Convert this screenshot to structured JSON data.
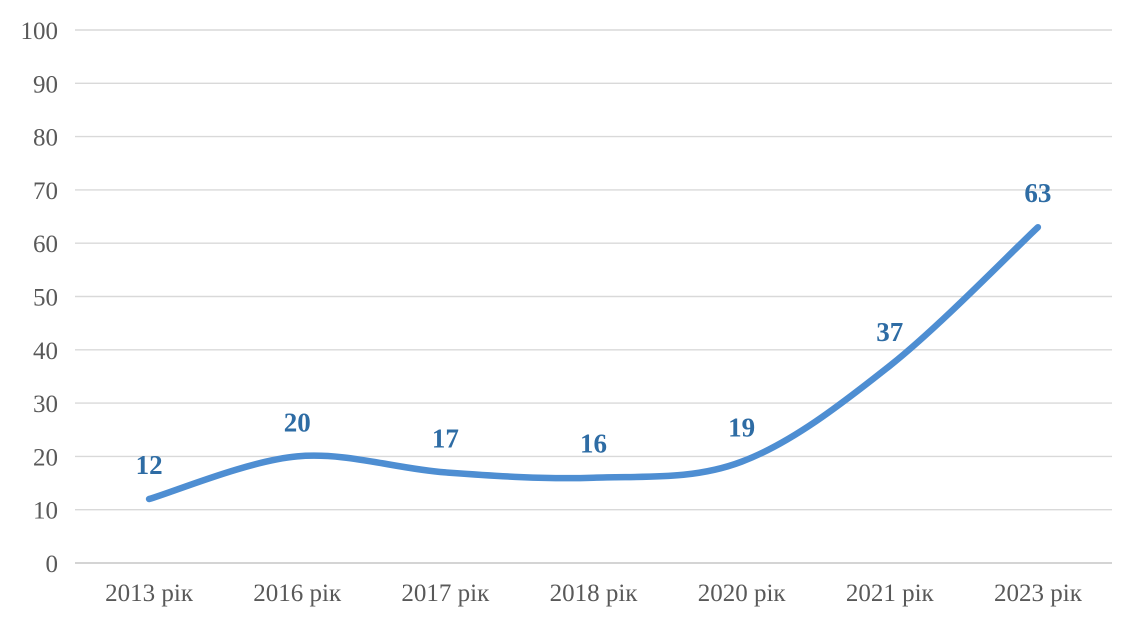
{
  "chart_data": {
    "type": "line",
    "categories": [
      "2013 рік",
      "2016 рік",
      "2017 рік",
      "2018 рік",
      "2020 рік",
      "2021 рік",
      "2023 рік"
    ],
    "series": [
      {
        "name": "series-1",
        "values": [
          12,
          20,
          17,
          16,
          19,
          37,
          63
        ]
      }
    ],
    "data_labels": [
      "12",
      "20",
      "17",
      "16",
      "19",
      "37",
      "63"
    ],
    "title": "",
    "xlabel": "",
    "ylabel": "",
    "ylim": [
      0,
      100
    ],
    "ytick_step": 10,
    "ytick_labels": [
      "0",
      "10",
      "20",
      "30",
      "40",
      "50",
      "60",
      "70",
      "80",
      "90",
      "100"
    ],
    "grid": "horizontal",
    "legend": "none",
    "smooth": true,
    "colors": {
      "line": "#4e8ed2",
      "data_label": "#2e6ca4",
      "axis_text": "#595959",
      "gridline": "#d9d9d9",
      "axis_line": "#c6c6c6",
      "background": "#ffffff"
    }
  }
}
